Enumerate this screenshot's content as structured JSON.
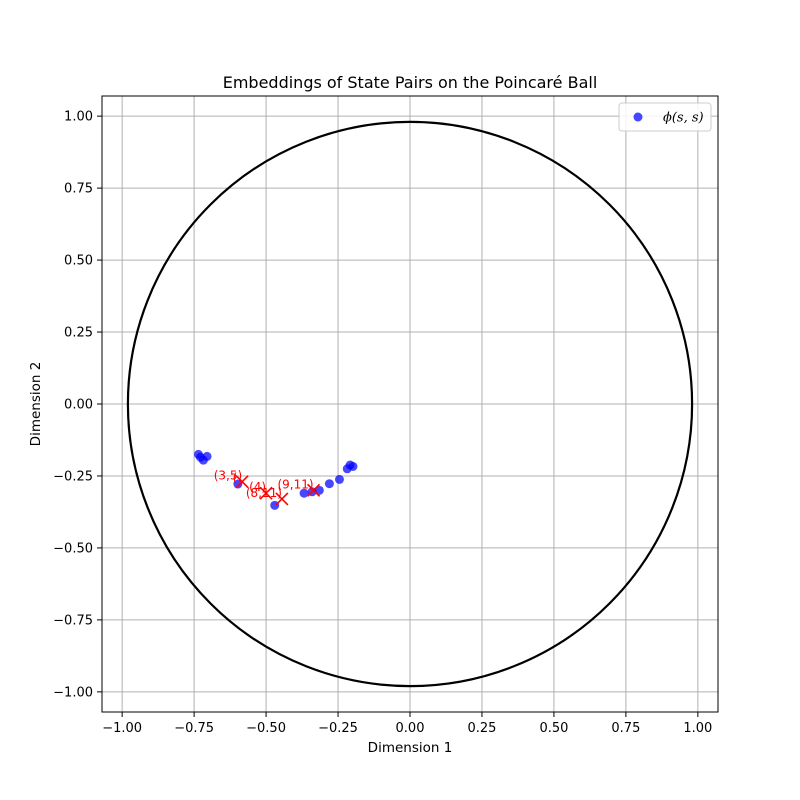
{
  "chart_data": {
    "type": "scatter",
    "title": "Embeddings of State Pairs on the Poincaré Ball",
    "xlabel": "Dimension 1",
    "ylabel": "Dimension 2",
    "xlim": [
      -1.07,
      1.07
    ],
    "ylim": [
      -1.07,
      1.07
    ],
    "xticks": [
      -1.0,
      -0.75,
      -0.5,
      -0.25,
      0.0,
      0.25,
      0.5,
      0.75,
      1.0
    ],
    "yticks": [
      -1.0,
      -0.75,
      -0.5,
      -0.25,
      0.0,
      0.25,
      0.5,
      0.75,
      1.0
    ],
    "xtick_labels": [
      "−1.00",
      "−0.75",
      "−0.50",
      "−0.25",
      "0.00",
      "0.25",
      "0.50",
      "0.75",
      "1.00"
    ],
    "ytick_labels": [
      "−1.00",
      "−0.75",
      "−0.50",
      "−0.25",
      "0.00",
      "0.25",
      "0.50",
      "0.75",
      "1.00"
    ],
    "grid": true,
    "boundary_circle": {
      "radius": 0.98,
      "color": "#000000"
    },
    "legend": {
      "placement": "top-right",
      "entries": [
        {
          "label": "ϕ(s, s)",
          "color": "#0000ff"
        }
      ]
    },
    "series": [
      {
        "name": "ϕ(s, s)",
        "marker": "circle",
        "color": "#0000ff",
        "points": [
          {
            "x": -0.735,
            "y": -0.175
          },
          {
            "x": -0.728,
            "y": -0.185
          },
          {
            "x": -0.718,
            "y": -0.195
          },
          {
            "x": -0.705,
            "y": -0.182
          },
          {
            "x": -0.598,
            "y": -0.278
          },
          {
            "x": -0.47,
            "y": -0.352
          },
          {
            "x": -0.368,
            "y": -0.31
          },
          {
            "x": -0.34,
            "y": -0.305
          },
          {
            "x": -0.315,
            "y": -0.3
          },
          {
            "x": -0.28,
            "y": -0.277
          },
          {
            "x": -0.245,
            "y": -0.262
          },
          {
            "x": -0.218,
            "y": -0.225
          },
          {
            "x": -0.208,
            "y": -0.212
          },
          {
            "x": -0.198,
            "y": -0.217
          }
        ]
      },
      {
        "name": "",
        "marker": "x",
        "color": "#ff0000",
        "points": [
          {
            "x": -0.583,
            "y": -0.27,
            "label": "(3,5)"
          },
          {
            "x": -0.5,
            "y": -0.31,
            "label": "(4)"
          },
          {
            "x": -0.445,
            "y": -0.33,
            "label": "(8,11)"
          },
          {
            "x": -0.335,
            "y": -0.3,
            "label": "(9,11)"
          }
        ]
      }
    ],
    "annotations": [
      {
        "text": "(3,5)",
        "x": -0.583,
        "y": -0.27
      },
      {
        "text": "(",
        "x": -0.6,
        "y": -0.278
      },
      {
        "text": "(4)",
        "x": -0.5,
        "y": -0.31
      },
      {
        "text": "(8,11)",
        "x": -0.445,
        "y": -0.33
      },
      {
        "text": "(9,11)",
        "x": -0.335,
        "y": -0.3
      }
    ]
  }
}
